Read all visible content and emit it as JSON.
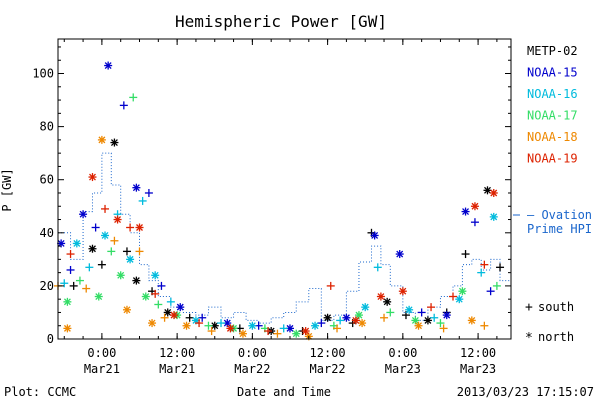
{
  "chart_data": {
    "type": "scatter",
    "title": "Hemispheric Power [GW]",
    "ylabel": "P [GW]",
    "xlabel": "Date and Time",
    "xlim": [
      "2013-03-20T17:00",
      "2013-03-23T17:15"
    ],
    "ylim": [
      0,
      113
    ],
    "yticks": [
      0,
      20,
      40,
      60,
      80,
      100
    ],
    "xticks": [
      {
        "at": "2013-03-21T00:00",
        "time": "0:00",
        "date": "Mar21"
      },
      {
        "at": "2013-03-21T12:00",
        "time": "12:00",
        "date": "Mar21"
      },
      {
        "at": "2013-03-22T00:00",
        "time": "0:00",
        "date": "Mar22"
      },
      {
        "at": "2013-03-22T12:00",
        "time": "12:00",
        "date": "Mar22"
      },
      {
        "at": "2013-03-23T00:00",
        "time": "0:00",
        "date": "Mar23"
      },
      {
        "at": "2013-03-23T12:00",
        "time": "12:00",
        "date": "Mar23"
      }
    ],
    "legend_placement": "right",
    "marker_legend": [
      {
        "symbol": "+",
        "label": "south"
      },
      {
        "symbol": "*",
        "label": "north"
      }
    ],
    "series": [
      {
        "name": "METP-02",
        "color": "#000000",
        "points": [
          {
            "x": "2013-03-20T19:30",
            "y": 20,
            "m": "+"
          },
          {
            "x": "2013-03-20T22:30",
            "y": 34,
            "m": "*"
          },
          {
            "x": "2013-03-21T00:00",
            "y": 28,
            "m": "+"
          },
          {
            "x": "2013-03-21T02:00",
            "y": 74,
            "m": "*"
          },
          {
            "x": "2013-03-21T04:00",
            "y": 33,
            "m": "+"
          },
          {
            "x": "2013-03-21T05:30",
            "y": 22,
            "m": "*"
          },
          {
            "x": "2013-03-21T08:00",
            "y": 18,
            "m": "+"
          },
          {
            "x": "2013-03-21T10:30",
            "y": 10,
            "m": "*"
          },
          {
            "x": "2013-03-21T14:00",
            "y": 8,
            "m": "+"
          },
          {
            "x": "2013-03-21T18:00",
            "y": 5,
            "m": "*"
          },
          {
            "x": "2013-03-21T22:00",
            "y": 4,
            "m": "+"
          },
          {
            "x": "2013-03-22T03:00",
            "y": 3,
            "m": "*"
          },
          {
            "x": "2013-03-22T08:00",
            "y": 3,
            "m": "+"
          },
          {
            "x": "2013-03-22T12:00",
            "y": 8,
            "m": "*"
          },
          {
            "x": "2013-03-22T16:00",
            "y": 6,
            "m": "+"
          },
          {
            "x": "2013-03-22T19:00",
            "y": 40,
            "m": "+"
          },
          {
            "x": "2013-03-22T21:30",
            "y": 14,
            "m": "*"
          },
          {
            "x": "2013-03-23T00:30",
            "y": 9,
            "m": "+"
          },
          {
            "x": "2013-03-23T04:00",
            "y": 7,
            "m": "*"
          },
          {
            "x": "2013-03-23T07:00",
            "y": 10,
            "m": "+"
          },
          {
            "x": "2013-03-23T10:00",
            "y": 32,
            "m": "+"
          },
          {
            "x": "2013-03-23T13:30",
            "y": 56,
            "m": "*"
          },
          {
            "x": "2013-03-23T15:30",
            "y": 27,
            "m": "+"
          }
        ]
      },
      {
        "name": "NOAA-15",
        "color": "#0000cc",
        "points": [
          {
            "x": "2013-03-20T17:30",
            "y": 36,
            "m": "*"
          },
          {
            "x": "2013-03-20T19:00",
            "y": 26,
            "m": "+"
          },
          {
            "x": "2013-03-20T21:00",
            "y": 47,
            "m": "*"
          },
          {
            "x": "2013-03-20T23:00",
            "y": 42,
            "m": "+"
          },
          {
            "x": "2013-03-21T01:00",
            "y": 103,
            "m": "*"
          },
          {
            "x": "2013-03-21T03:30",
            "y": 88,
            "m": "+"
          },
          {
            "x": "2013-03-21T05:30",
            "y": 57,
            "m": "*"
          },
          {
            "x": "2013-03-21T07:30",
            "y": 55,
            "m": "+"
          },
          {
            "x": "2013-03-21T09:30",
            "y": 20,
            "m": "+"
          },
          {
            "x": "2013-03-21T12:30",
            "y": 12,
            "m": "*"
          },
          {
            "x": "2013-03-21T16:00",
            "y": 8,
            "m": "+"
          },
          {
            "x": "2013-03-21T20:00",
            "y": 6,
            "m": "*"
          },
          {
            "x": "2013-03-22T01:00",
            "y": 5,
            "m": "+"
          },
          {
            "x": "2013-03-22T06:00",
            "y": 4,
            "m": "*"
          },
          {
            "x": "2013-03-22T11:00",
            "y": 6,
            "m": "+"
          },
          {
            "x": "2013-03-22T15:00",
            "y": 8,
            "m": "*"
          },
          {
            "x": "2013-03-22T19:30",
            "y": 39,
            "m": "*"
          },
          {
            "x": "2013-03-22T23:30",
            "y": 32,
            "m": "*"
          },
          {
            "x": "2013-03-23T03:00",
            "y": 10,
            "m": "+"
          },
          {
            "x": "2013-03-23T07:00",
            "y": 9,
            "m": "*"
          },
          {
            "x": "2013-03-23T10:00",
            "y": 48,
            "m": "*"
          },
          {
            "x": "2013-03-23T11:30",
            "y": 44,
            "m": "+"
          },
          {
            "x": "2013-03-23T14:00",
            "y": 18,
            "m": "+"
          }
        ]
      },
      {
        "name": "NOAA-16",
        "color": "#00bbdd",
        "points": [
          {
            "x": "2013-03-20T18:00",
            "y": 21,
            "m": "+"
          },
          {
            "x": "2013-03-20T20:00",
            "y": 36,
            "m": "*"
          },
          {
            "x": "2013-03-20T22:00",
            "y": 27,
            "m": "+"
          },
          {
            "x": "2013-03-21T00:30",
            "y": 39,
            "m": "*"
          },
          {
            "x": "2013-03-21T02:30",
            "y": 47,
            "m": "+"
          },
          {
            "x": "2013-03-21T04:30",
            "y": 30,
            "m": "*"
          },
          {
            "x": "2013-03-21T06:30",
            "y": 52,
            "m": "+"
          },
          {
            "x": "2013-03-21T08:30",
            "y": 24,
            "m": "*"
          },
          {
            "x": "2013-03-21T11:00",
            "y": 14,
            "m": "+"
          },
          {
            "x": "2013-03-21T15:00",
            "y": 7,
            "m": "*"
          },
          {
            "x": "2013-03-21T19:00",
            "y": 6,
            "m": "+"
          },
          {
            "x": "2013-03-22T00:00",
            "y": 5,
            "m": "*"
          },
          {
            "x": "2013-03-22T05:00",
            "y": 4,
            "m": "+"
          },
          {
            "x": "2013-03-22T10:00",
            "y": 5,
            "m": "*"
          },
          {
            "x": "2013-03-22T14:00",
            "y": 7,
            "m": "+"
          },
          {
            "x": "2013-03-22T18:00",
            "y": 12,
            "m": "*"
          },
          {
            "x": "2013-03-22T20:00",
            "y": 27,
            "m": "+"
          },
          {
            "x": "2013-03-23T01:00",
            "y": 11,
            "m": "*"
          },
          {
            "x": "2013-03-23T05:00",
            "y": 8,
            "m": "+"
          },
          {
            "x": "2013-03-23T09:00",
            "y": 15,
            "m": "*"
          },
          {
            "x": "2013-03-23T12:30",
            "y": 25,
            "m": "+"
          },
          {
            "x": "2013-03-23T14:30",
            "y": 46,
            "m": "*"
          }
        ]
      },
      {
        "name": "NOAA-17",
        "color": "#33dd66",
        "points": [
          {
            "x": "2013-03-20T18:30",
            "y": 14,
            "m": "*"
          },
          {
            "x": "2013-03-20T20:30",
            "y": 22,
            "m": "+"
          },
          {
            "x": "2013-03-20T23:30",
            "y": 16,
            "m": "*"
          },
          {
            "x": "2013-03-21T01:30",
            "y": 33,
            "m": "+"
          },
          {
            "x": "2013-03-21T03:00",
            "y": 24,
            "m": "*"
          },
          {
            "x": "2013-03-21T05:00",
            "y": 91,
            "m": "+"
          },
          {
            "x": "2013-03-21T07:00",
            "y": 16,
            "m": "*"
          },
          {
            "x": "2013-03-21T09:00",
            "y": 13,
            "m": "+"
          },
          {
            "x": "2013-03-21T12:00",
            "y": 9,
            "m": "*"
          },
          {
            "x": "2013-03-21T17:00",
            "y": 5,
            "m": "+"
          },
          {
            "x": "2013-03-21T21:00",
            "y": 4,
            "m": "*"
          },
          {
            "x": "2013-03-22T02:00",
            "y": 4,
            "m": "+"
          },
          {
            "x": "2013-03-22T07:00",
            "y": 2,
            "m": "*"
          },
          {
            "x": "2013-03-22T13:00",
            "y": 5,
            "m": "+"
          },
          {
            "x": "2013-03-22T17:00",
            "y": 9,
            "m": "*"
          },
          {
            "x": "2013-03-22T22:00",
            "y": 10,
            "m": "+"
          },
          {
            "x": "2013-03-23T02:00",
            "y": 7,
            "m": "*"
          },
          {
            "x": "2013-03-23T06:00",
            "y": 6,
            "m": "+"
          },
          {
            "x": "2013-03-23T09:30",
            "y": 18,
            "m": "*"
          },
          {
            "x": "2013-03-23T15:00",
            "y": 20,
            "m": "+"
          }
        ]
      },
      {
        "name": "NOAA-18",
        "color": "#ee8800",
        "points": [
          {
            "x": "2013-03-20T17:00",
            "y": 20,
            "m": "+"
          },
          {
            "x": "2013-03-20T18:30",
            "y": 4,
            "m": "*"
          },
          {
            "x": "2013-03-20T21:30",
            "y": 19,
            "m": "+"
          },
          {
            "x": "2013-03-21T00:00",
            "y": 75,
            "m": "*"
          },
          {
            "x": "2013-03-21T02:00",
            "y": 37,
            "m": "+"
          },
          {
            "x": "2013-03-21T04:00",
            "y": 11,
            "m": "*"
          },
          {
            "x": "2013-03-21T06:00",
            "y": 33,
            "m": "+"
          },
          {
            "x": "2013-03-21T08:00",
            "y": 6,
            "m": "*"
          },
          {
            "x": "2013-03-21T10:00",
            "y": 8,
            "m": "+"
          },
          {
            "x": "2013-03-21T13:30",
            "y": 5,
            "m": "*"
          },
          {
            "x": "2013-03-21T17:30",
            "y": 3,
            "m": "+"
          },
          {
            "x": "2013-03-21T22:30",
            "y": 2,
            "m": "*"
          },
          {
            "x": "2013-03-22T04:00",
            "y": 2,
            "m": "+"
          },
          {
            "x": "2013-03-22T09:00",
            "y": 1,
            "m": "*"
          },
          {
            "x": "2013-03-22T13:30",
            "y": 4,
            "m": "+"
          },
          {
            "x": "2013-03-22T17:30",
            "y": 6,
            "m": "*"
          },
          {
            "x": "2013-03-22T21:00",
            "y": 8,
            "m": "+"
          },
          {
            "x": "2013-03-23T02:30",
            "y": 5,
            "m": "*"
          },
          {
            "x": "2013-03-23T06:30",
            "y": 4,
            "m": "+"
          },
          {
            "x": "2013-03-23T11:00",
            "y": 7,
            "m": "*"
          },
          {
            "x": "2013-03-23T13:00",
            "y": 5,
            "m": "+"
          }
        ]
      },
      {
        "name": "NOAA-19",
        "color": "#dd2200",
        "points": [
          {
            "x": "2013-03-20T19:00",
            "y": 32,
            "m": "+"
          },
          {
            "x": "2013-03-20T22:30",
            "y": 61,
            "m": "*"
          },
          {
            "x": "2013-03-21T00:30",
            "y": 49,
            "m": "+"
          },
          {
            "x": "2013-03-21T02:30",
            "y": 45,
            "m": "*"
          },
          {
            "x": "2013-03-21T04:30",
            "y": 42,
            "m": "+"
          },
          {
            "x": "2013-03-21T06:00",
            "y": 42,
            "m": "*"
          },
          {
            "x": "2013-03-21T08:30",
            "y": 17,
            "m": "+"
          },
          {
            "x": "2013-03-21T11:30",
            "y": 9,
            "m": "*"
          },
          {
            "x": "2013-03-21T15:30",
            "y": 6,
            "m": "+"
          },
          {
            "x": "2013-03-21T20:30",
            "y": 4,
            "m": "*"
          },
          {
            "x": "2013-03-22T02:30",
            "y": 3,
            "m": "+"
          },
          {
            "x": "2013-03-22T08:30",
            "y": 3,
            "m": "*"
          },
          {
            "x": "2013-03-22T12:30",
            "y": 20,
            "m": "+"
          },
          {
            "x": "2013-03-22T16:30",
            "y": 7,
            "m": "*"
          },
          {
            "x": "2013-03-22T20:30",
            "y": 16,
            "m": "*"
          },
          {
            "x": "2013-03-23T00:00",
            "y": 18,
            "m": "*"
          },
          {
            "x": "2013-03-23T04:30",
            "y": 12,
            "m": "+"
          },
          {
            "x": "2013-03-23T08:00",
            "y": 16,
            "m": "+"
          },
          {
            "x": "2013-03-23T11:30",
            "y": 50,
            "m": "*"
          },
          {
            "x": "2013-03-23T13:00",
            "y": 28,
            "m": "+"
          },
          {
            "x": "2013-03-23T14:30",
            "y": 55,
            "m": "*"
          }
        ]
      }
    ],
    "hpi_series": {
      "label_line1": "— Ovation",
      "label_line2": "Prime HPI",
      "color": "#1a66cc",
      "style": "dotted-step",
      "points": [
        {
          "x": "2013-03-20T17:00",
          "y": 40
        },
        {
          "x": "2013-03-20T19:00",
          "y": 30
        },
        {
          "x": "2013-03-20T21:00",
          "y": 48
        },
        {
          "x": "2013-03-20T22:30",
          "y": 55
        },
        {
          "x": "2013-03-21T00:00",
          "y": 70
        },
        {
          "x": "2013-03-21T01:30",
          "y": 58
        },
        {
          "x": "2013-03-21T03:00",
          "y": 47
        },
        {
          "x": "2013-03-21T04:30",
          "y": 40
        },
        {
          "x": "2013-03-21T06:00",
          "y": 28
        },
        {
          "x": "2013-03-21T07:30",
          "y": 22
        },
        {
          "x": "2013-03-21T09:00",
          "y": 16
        },
        {
          "x": "2013-03-21T11:00",
          "y": 12
        },
        {
          "x": "2013-03-21T13:00",
          "y": 10
        },
        {
          "x": "2013-03-21T15:00",
          "y": 9
        },
        {
          "x": "2013-03-21T17:00",
          "y": 12
        },
        {
          "x": "2013-03-21T19:00",
          "y": 8
        },
        {
          "x": "2013-03-21T21:00",
          "y": 10
        },
        {
          "x": "2013-03-21T23:00",
          "y": 7
        },
        {
          "x": "2013-03-22T01:00",
          "y": 6
        },
        {
          "x": "2013-03-22T03:00",
          "y": 8
        },
        {
          "x": "2013-03-22T05:00",
          "y": 10
        },
        {
          "x": "2013-03-22T07:00",
          "y": 14
        },
        {
          "x": "2013-03-22T09:00",
          "y": 19
        },
        {
          "x": "2013-03-22T11:00",
          "y": 7
        },
        {
          "x": "2013-03-22T13:00",
          "y": 9
        },
        {
          "x": "2013-03-22T15:00",
          "y": 18
        },
        {
          "x": "2013-03-22T17:00",
          "y": 29
        },
        {
          "x": "2013-03-22T19:00",
          "y": 35
        },
        {
          "x": "2013-03-22T20:30",
          "y": 28
        },
        {
          "x": "2013-03-22T22:00",
          "y": 20
        },
        {
          "x": "2013-03-23T00:00",
          "y": 10
        },
        {
          "x": "2013-03-23T02:00",
          "y": 7
        },
        {
          "x": "2013-03-23T04:00",
          "y": 12
        },
        {
          "x": "2013-03-23T06:00",
          "y": 16
        },
        {
          "x": "2013-03-23T08:00",
          "y": 20
        },
        {
          "x": "2013-03-23T09:30",
          "y": 28
        },
        {
          "x": "2013-03-23T11:00",
          "y": 30
        },
        {
          "x": "2013-03-23T12:30",
          "y": 26
        },
        {
          "x": "2013-03-23T14:00",
          "y": 30
        },
        {
          "x": "2013-03-23T15:30",
          "y": 22
        },
        {
          "x": "2013-03-23T17:15",
          "y": 20
        }
      ]
    }
  },
  "footer": {
    "plot_credit": "Plot: CCMC",
    "timestamp": "2013/03/23 17:15:07"
  }
}
